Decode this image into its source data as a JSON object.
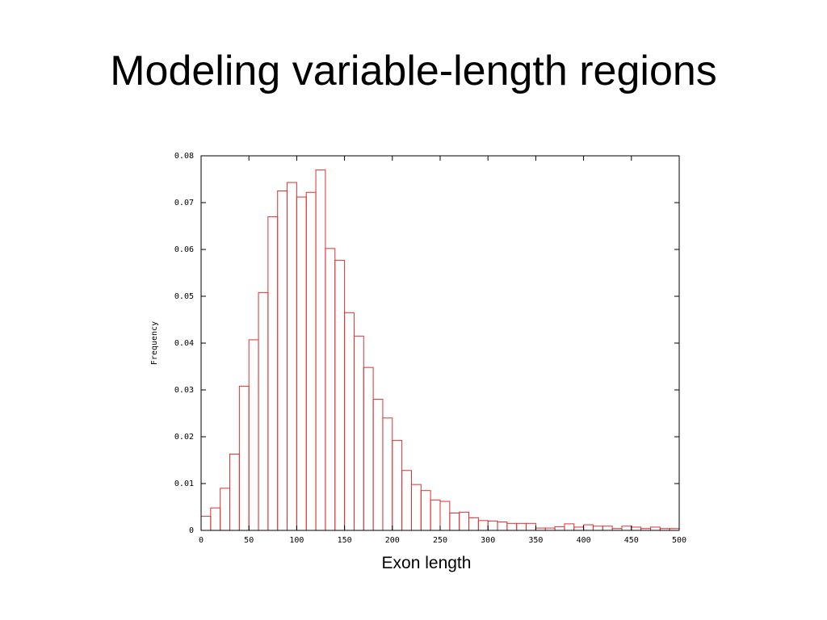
{
  "slide": {
    "title": "Modeling variable-length regions"
  },
  "chart_data": {
    "type": "bar",
    "title": "",
    "xlabel": "Exon length",
    "ylabel": "Frequency",
    "xlim": [
      0,
      500
    ],
    "ylim": [
      0,
      0.08
    ],
    "bin_width": 10,
    "xticks": [
      0,
      50,
      100,
      150,
      200,
      250,
      300,
      350,
      400,
      450,
      500
    ],
    "yticks": [
      0,
      0.01,
      0.02,
      0.03,
      0.04,
      0.05,
      0.06,
      0.07,
      0.08
    ],
    "xtick_labels": [
      "0",
      "50",
      "100",
      "150",
      "200",
      "250",
      "300",
      "350",
      "400",
      "450",
      "500"
    ],
    "ytick_labels": [
      "0",
      "0.01",
      "0.02",
      "0.03",
      "0.04",
      "0.05",
      "0.06",
      "0.07",
      "0.08"
    ],
    "grid": false,
    "bar_color": "#e03030",
    "series": [
      {
        "values": [
          0.003,
          0.0048,
          0.009,
          0.0163,
          0.0308,
          0.0407,
          0.0508,
          0.067,
          0.0725,
          0.0743,
          0.0712,
          0.0722,
          0.077,
          0.0602,
          0.0577,
          0.0465,
          0.0415,
          0.0348,
          0.028,
          0.024,
          0.0192,
          0.0128,
          0.0098,
          0.0085,
          0.0065,
          0.0062,
          0.0037,
          0.0039,
          0.0027,
          0.0021,
          0.002,
          0.0018,
          0.0015,
          0.0015,
          0.0015,
          0.0005,
          0.0005,
          0.0008,
          0.0014,
          0.0007,
          0.0012,
          0.0009,
          0.0009,
          0.0004,
          0.0009,
          0.0007,
          0.0004,
          0.0007,
          0.0004,
          0.0004
        ]
      }
    ]
  }
}
